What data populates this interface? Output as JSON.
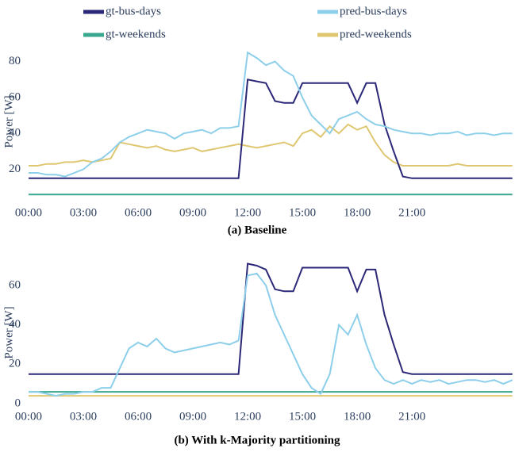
{
  "chart_data": [
    {
      "type": "line",
      "title": "(a) Baseline",
      "y_label": "Power [W]",
      "legend": "top",
      "x": [
        0,
        0.5,
        1,
        1.5,
        2,
        2.5,
        3,
        3.5,
        4,
        4.5,
        5,
        5.5,
        6,
        6.5,
        7,
        7.5,
        8,
        8.5,
        9,
        9.5,
        10,
        10.5,
        11,
        11.5,
        12,
        12.5,
        13,
        13.5,
        14,
        14.5,
        15,
        15.5,
        16,
        16.5,
        17,
        17.5,
        18,
        18.5,
        19,
        19.5,
        20,
        20.5,
        21,
        21.5,
        22,
        22.5,
        23,
        23.5,
        24,
        24.5,
        25,
        25.5,
        26,
        26.5
      ],
      "xlim": [
        -0.26,
        26.6
      ],
      "xticks": [
        {
          "value": 0,
          "label": "00:00"
        },
        {
          "value": 3,
          "label": "03:00"
        },
        {
          "value": 6,
          "label": "06:00"
        },
        {
          "value": 9,
          "label": "09:00"
        },
        {
          "value": 12,
          "label": "12:00"
        },
        {
          "value": 15,
          "label": "15:00"
        },
        {
          "value": 18,
          "label": "18:00"
        },
        {
          "value": 21,
          "label": "21:00"
        }
      ],
      "ylim": [
        3,
        90
      ],
      "yticks": [
        20,
        40,
        60,
        80
      ],
      "series": [
        {
          "name": "gt-bus-days",
          "color": "#2c2878",
          "values": [
            15,
            15,
            15,
            15,
            15,
            15,
            15,
            15,
            15,
            15,
            15,
            15,
            15,
            15,
            15,
            15,
            15,
            15,
            15,
            15,
            15,
            15,
            15,
            15,
            70,
            69,
            68,
            58,
            57,
            57,
            68,
            68,
            68,
            68,
            68,
            68,
            57,
            68,
            68,
            45,
            30,
            16,
            15,
            15,
            15,
            15,
            15,
            15,
            15,
            15,
            15,
            15,
            15,
            15
          ]
        },
        {
          "name": "pred-bus-days",
          "color": "#8dcfea",
          "values": [
            18,
            18,
            17,
            17,
            16,
            18,
            20,
            24,
            26,
            30,
            35,
            38,
            40,
            42,
            41,
            40,
            37,
            40,
            41,
            42,
            40,
            43,
            43,
            44,
            85,
            82,
            78,
            80,
            75,
            72,
            60,
            50,
            45,
            40,
            48,
            50,
            52,
            48,
            45,
            44,
            42,
            41,
            40,
            40,
            39,
            40,
            40,
            41,
            39,
            40,
            40,
            39,
            40,
            40
          ]
        },
        {
          "name": "gt-weekends",
          "color": "#3aa88e",
          "values": [
            6,
            6,
            6,
            6,
            6,
            6,
            6,
            6,
            6,
            6,
            6,
            6,
            6,
            6,
            6,
            6,
            6,
            6,
            6,
            6,
            6,
            6,
            6,
            6,
            6,
            6,
            6,
            6,
            6,
            6,
            6,
            6,
            6,
            6,
            6,
            6,
            6,
            6,
            6,
            6,
            6,
            6,
            6,
            6,
            6,
            6,
            6,
            6,
            6,
            6,
            6,
            6,
            6,
            6
          ]
        },
        {
          "name": "pred-weekends",
          "color": "#dfc772",
          "values": [
            22,
            22,
            23,
            23,
            24,
            24,
            25,
            24,
            25,
            26,
            35,
            34,
            33,
            32,
            33,
            31,
            30,
            31,
            32,
            30,
            31,
            32,
            33,
            34,
            33,
            32,
            33,
            34,
            35,
            33,
            40,
            42,
            38,
            44,
            40,
            45,
            42,
            44,
            35,
            28,
            24,
            22,
            22,
            22,
            22,
            22,
            22,
            23,
            22,
            22,
            22,
            22,
            22,
            22
          ]
        }
      ]
    },
    {
      "type": "line",
      "title": "(b) With k-Majority partitioning",
      "y_label": "Power [W]",
      "x": [
        0,
        0.5,
        1,
        1.5,
        2,
        2.5,
        3,
        3.5,
        4,
        4.5,
        5,
        5.5,
        6,
        6.5,
        7,
        7.5,
        8,
        8.5,
        9,
        9.5,
        10,
        10.5,
        11,
        11.5,
        12,
        12.5,
        13,
        13.5,
        14,
        14.5,
        15,
        15.5,
        16,
        16.5,
        17,
        17.5,
        18,
        18.5,
        19,
        19.5,
        20,
        20.5,
        21,
        21.5,
        22,
        22.5,
        23,
        23.5,
        24,
        24.5,
        25,
        25.5,
        26,
        26.5
      ],
      "xlim": [
        -0.26,
        26.6
      ],
      "xticks": [
        {
          "value": 0,
          "label": "00:00"
        },
        {
          "value": 3,
          "label": "03:00"
        },
        {
          "value": 6,
          "label": "06:00"
        },
        {
          "value": 9,
          "label": "09:00"
        },
        {
          "value": 12,
          "label": "12:00"
        },
        {
          "value": 15,
          "label": "15:00"
        },
        {
          "value": 18,
          "label": "18:00"
        },
        {
          "value": 21,
          "label": "21:00"
        }
      ],
      "ylim": [
        0,
        72
      ],
      "yticks": [
        0,
        20,
        40,
        60
      ],
      "series": [
        {
          "color": "#2c2878",
          "values": [
            15,
            15,
            15,
            15,
            15,
            15,
            15,
            15,
            15,
            15,
            15,
            15,
            15,
            15,
            15,
            15,
            15,
            15,
            15,
            15,
            15,
            15,
            15,
            15,
            71,
            70,
            68,
            58,
            57,
            57,
            69,
            69,
            69,
            69,
            69,
            69,
            57,
            68,
            68,
            45,
            30,
            16,
            15,
            15,
            15,
            15,
            15,
            15,
            15,
            15,
            15,
            15,
            15,
            15
          ]
        },
        {
          "color": "#8dcfea",
          "values": [
            6,
            6,
            5,
            4,
            5,
            5,
            6,
            6,
            8,
            8,
            18,
            28,
            31,
            29,
            33,
            28,
            26,
            27,
            28,
            29,
            30,
            31,
            30,
            32,
            65,
            66,
            60,
            45,
            35,
            25,
            15,
            8,
            5,
            15,
            40,
            35,
            45,
            30,
            18,
            12,
            10,
            12,
            10,
            12,
            11,
            12,
            10,
            11,
            12,
            12,
            11,
            12,
            10,
            12
          ]
        },
        {
          "color": "#3aa88e",
          "values": [
            6,
            6,
            6,
            6,
            6,
            6,
            6,
            6,
            6,
            6,
            6,
            6,
            6,
            6,
            6,
            6,
            6,
            6,
            6,
            6,
            6,
            6,
            6,
            6,
            6,
            6,
            6,
            6,
            6,
            6,
            6,
            6,
            6,
            6,
            6,
            6,
            6,
            6,
            6,
            6,
            6,
            6,
            6,
            6,
            6,
            6,
            6,
            6,
            6,
            6,
            6,
            6,
            6,
            6
          ]
        },
        {
          "color": "#dfc772",
          "values": [
            4,
            4,
            4,
            4,
            4,
            4,
            4,
            4,
            4,
            4,
            4,
            4,
            4,
            4,
            4,
            4,
            4,
            4,
            4,
            4,
            4,
            4,
            4,
            4,
            4,
            4,
            4,
            4,
            4,
            4,
            4,
            4,
            4,
            4,
            4,
            4,
            4,
            4,
            4,
            4,
            4,
            4,
            4,
            4,
            4,
            4,
            4,
            4,
            4,
            4,
            4,
            4,
            4,
            4
          ]
        }
      ]
    }
  ]
}
